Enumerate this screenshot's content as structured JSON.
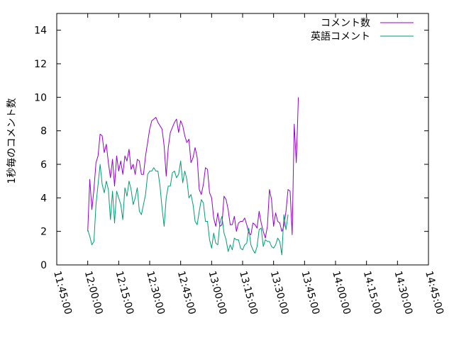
{
  "chart_data": {
    "type": "line",
    "title": "",
    "xlabel": "",
    "ylabel": "1秒毎のコメント数",
    "ylim": [
      0,
      15
    ],
    "yticks": [
      0,
      2,
      4,
      6,
      8,
      10,
      12,
      14
    ],
    "xlim_minutes": [
      705,
      885
    ],
    "xticks": [
      {
        "label": "11:45:00",
        "minutes": 705
      },
      {
        "label": "12:00:00",
        "minutes": 720
      },
      {
        "label": "12:15:00",
        "minutes": 735
      },
      {
        "label": "12:30:00",
        "minutes": 750
      },
      {
        "label": "12:45:00",
        "minutes": 765
      },
      {
        "label": "13:00:00",
        "minutes": 780
      },
      {
        "label": "13:15:00",
        "minutes": 795
      },
      {
        "label": "13:30:00",
        "minutes": 810
      },
      {
        "label": "13:45:00",
        "minutes": 825
      },
      {
        "label": "14:00:00",
        "minutes": 840
      },
      {
        "label": "14:15:00",
        "minutes": 855
      },
      {
        "label": "14:30:00",
        "minutes": 870
      },
      {
        "label": "14:45:00",
        "minutes": 885
      }
    ],
    "grid": false,
    "legend_position": "top-right",
    "series": [
      {
        "name": "コメント数",
        "color": "#9400d3",
        "points": [
          [
            720,
            2.0
          ],
          [
            721,
            5.1
          ],
          [
            722,
            3.3
          ],
          [
            723,
            4.5
          ],
          [
            724,
            6.1
          ],
          [
            725,
            6.5
          ],
          [
            726,
            7.8
          ],
          [
            727,
            7.7
          ],
          [
            728,
            6.7
          ],
          [
            729,
            7.2
          ],
          [
            730,
            6.1
          ],
          [
            731,
            5.2
          ],
          [
            732,
            6.3
          ],
          [
            733,
            4.7
          ],
          [
            734,
            6.5
          ],
          [
            735,
            5.6
          ],
          [
            736,
            6.2
          ],
          [
            737,
            5.4
          ],
          [
            738,
            6.5
          ],
          [
            739,
            6.2
          ],
          [
            740,
            6.9
          ],
          [
            741,
            5.7
          ],
          [
            742,
            6.0
          ],
          [
            743,
            5.4
          ],
          [
            744,
            6.3
          ],
          [
            745,
            6.2
          ],
          [
            746,
            5.4
          ],
          [
            747,
            5.4
          ],
          [
            748,
            6.5
          ],
          [
            749,
            7.3
          ],
          [
            750,
            8.1
          ],
          [
            751,
            8.6
          ],
          [
            752,
            8.7
          ],
          [
            753,
            8.8
          ],
          [
            754,
            8.5
          ],
          [
            755,
            8.3
          ],
          [
            756,
            8.1
          ],
          [
            757,
            7.1
          ],
          [
            758,
            5.3
          ],
          [
            759,
            7.0
          ],
          [
            760,
            7.9
          ],
          [
            761,
            8.2
          ],
          [
            762,
            8.5
          ],
          [
            763,
            8.7
          ],
          [
            764,
            7.9
          ],
          [
            765,
            8.6
          ],
          [
            766,
            8.3
          ],
          [
            767,
            7.7
          ],
          [
            768,
            7.3
          ],
          [
            769,
            7.5
          ],
          [
            770,
            6.1
          ],
          [
            771,
            6.4
          ],
          [
            772,
            7.0
          ],
          [
            773,
            6.4
          ],
          [
            774,
            4.5
          ],
          [
            775,
            4.2
          ],
          [
            776,
            4.8
          ],
          [
            777,
            5.8
          ],
          [
            778,
            5.7
          ],
          [
            779,
            4.3
          ],
          [
            780,
            4.0
          ],
          [
            781,
            2.8
          ],
          [
            782,
            2.3
          ],
          [
            783,
            3.1
          ],
          [
            784,
            2.3
          ],
          [
            785,
            2.4
          ],
          [
            786,
            4.1
          ],
          [
            787,
            3.9
          ],
          [
            788,
            3.3
          ],
          [
            789,
            2.4
          ],
          [
            790,
            2.4
          ],
          [
            791,
            2.9
          ],
          [
            792,
            2.0
          ],
          [
            793,
            2.5
          ],
          [
            794,
            2.6
          ],
          [
            795,
            2.6
          ],
          [
            796,
            2.8
          ],
          [
            797,
            2.4
          ],
          [
            798,
            1.9
          ],
          [
            799,
            1.8
          ],
          [
            800,
            2.5
          ],
          [
            801,
            2.4
          ],
          [
            802,
            2.2
          ],
          [
            803,
            3.2
          ],
          [
            804,
            2.5
          ],
          [
            805,
            2.0
          ],
          [
            806,
            1.6
          ],
          [
            807,
            2.3
          ],
          [
            808,
            4.5
          ],
          [
            809,
            3.9
          ],
          [
            810,
            2.3
          ],
          [
            811,
            3.1
          ],
          [
            812,
            2.6
          ],
          [
            813,
            2.5
          ],
          [
            814,
            2.0
          ],
          [
            815,
            2.3
          ],
          [
            816,
            3.2
          ],
          [
            817,
            4.5
          ],
          [
            818,
            4.4
          ],
          [
            819,
            1.8
          ],
          [
            820,
            8.4
          ],
          [
            821,
            6.1
          ],
          [
            822,
            10.0
          ]
        ]
      },
      {
        "name": "英語コメント",
        "color": "#009e73",
        "points": [
          [
            720,
            2.1
          ],
          [
            721,
            1.7
          ],
          [
            722,
            1.2
          ],
          [
            723,
            1.4
          ],
          [
            724,
            3.6
          ],
          [
            725,
            4.8
          ],
          [
            726,
            6.0
          ],
          [
            727,
            4.8
          ],
          [
            728,
            4.3
          ],
          [
            729,
            5.0
          ],
          [
            730,
            4.5
          ],
          [
            731,
            2.7
          ],
          [
            732,
            4.4
          ],
          [
            733,
            2.5
          ],
          [
            734,
            4.4
          ],
          [
            735,
            4.0
          ],
          [
            736,
            3.6
          ],
          [
            737,
            2.7
          ],
          [
            738,
            4.6
          ],
          [
            739,
            4.1
          ],
          [
            740,
            5.0
          ],
          [
            741,
            4.5
          ],
          [
            742,
            3.6
          ],
          [
            743,
            4.0
          ],
          [
            744,
            4.6
          ],
          [
            745,
            3.2
          ],
          [
            746,
            3.0
          ],
          [
            747,
            3.6
          ],
          [
            748,
            4.2
          ],
          [
            749,
            5.4
          ],
          [
            750,
            5.6
          ],
          [
            751,
            5.6
          ],
          [
            752,
            5.8
          ],
          [
            753,
            5.6
          ],
          [
            754,
            5.6
          ],
          [
            755,
            4.7
          ],
          [
            756,
            3.4
          ],
          [
            757,
            2.3
          ],
          [
            758,
            4.0
          ],
          [
            759,
            4.7
          ],
          [
            760,
            4.7
          ],
          [
            761,
            5.5
          ],
          [
            762,
            5.6
          ],
          [
            763,
            5.2
          ],
          [
            764,
            5.4
          ],
          [
            765,
            6.2
          ],
          [
            766,
            4.9
          ],
          [
            767,
            5.6
          ],
          [
            768,
            5.1
          ],
          [
            769,
            4.0
          ],
          [
            770,
            4.2
          ],
          [
            771,
            3.6
          ],
          [
            772,
            2.6
          ],
          [
            773,
            2.4
          ],
          [
            774,
            3.2
          ],
          [
            775,
            3.9
          ],
          [
            776,
            3.7
          ],
          [
            777,
            2.6
          ],
          [
            778,
            2.6
          ],
          [
            779,
            1.5
          ],
          [
            780,
            1.0
          ],
          [
            781,
            1.9
          ],
          [
            782,
            1.3
          ],
          [
            783,
            1.2
          ],
          [
            784,
            2.5
          ],
          [
            785,
            2.9
          ],
          [
            786,
            1.9
          ],
          [
            787,
            1.5
          ],
          [
            788,
            0.8
          ],
          [
            789,
            1.2
          ],
          [
            790,
            0.9
          ],
          [
            791,
            1.6
          ],
          [
            792,
            1.5
          ],
          [
            793,
            1.5
          ],
          [
            794,
            1.0
          ],
          [
            795,
            0.9
          ],
          [
            796,
            1.2
          ],
          [
            797,
            1.3
          ],
          [
            798,
            2.2
          ],
          [
            799,
            1.2
          ],
          [
            800,
            0.9
          ],
          [
            801,
            0.7
          ],
          [
            802,
            1.1
          ],
          [
            803,
            2.1
          ],
          [
            804,
            2.2
          ],
          [
            805,
            1.1
          ],
          [
            806,
            1.5
          ],
          [
            807,
            1.4
          ],
          [
            808,
            1.4
          ],
          [
            809,
            1.1
          ],
          [
            810,
            1.0
          ],
          [
            811,
            1.2
          ],
          [
            812,
            1.6
          ],
          [
            813,
            1.4
          ],
          [
            814,
            0.6
          ],
          [
            815,
            3.0
          ],
          [
            816,
            2.1
          ],
          [
            817,
            3.0
          ]
        ]
      }
    ]
  }
}
